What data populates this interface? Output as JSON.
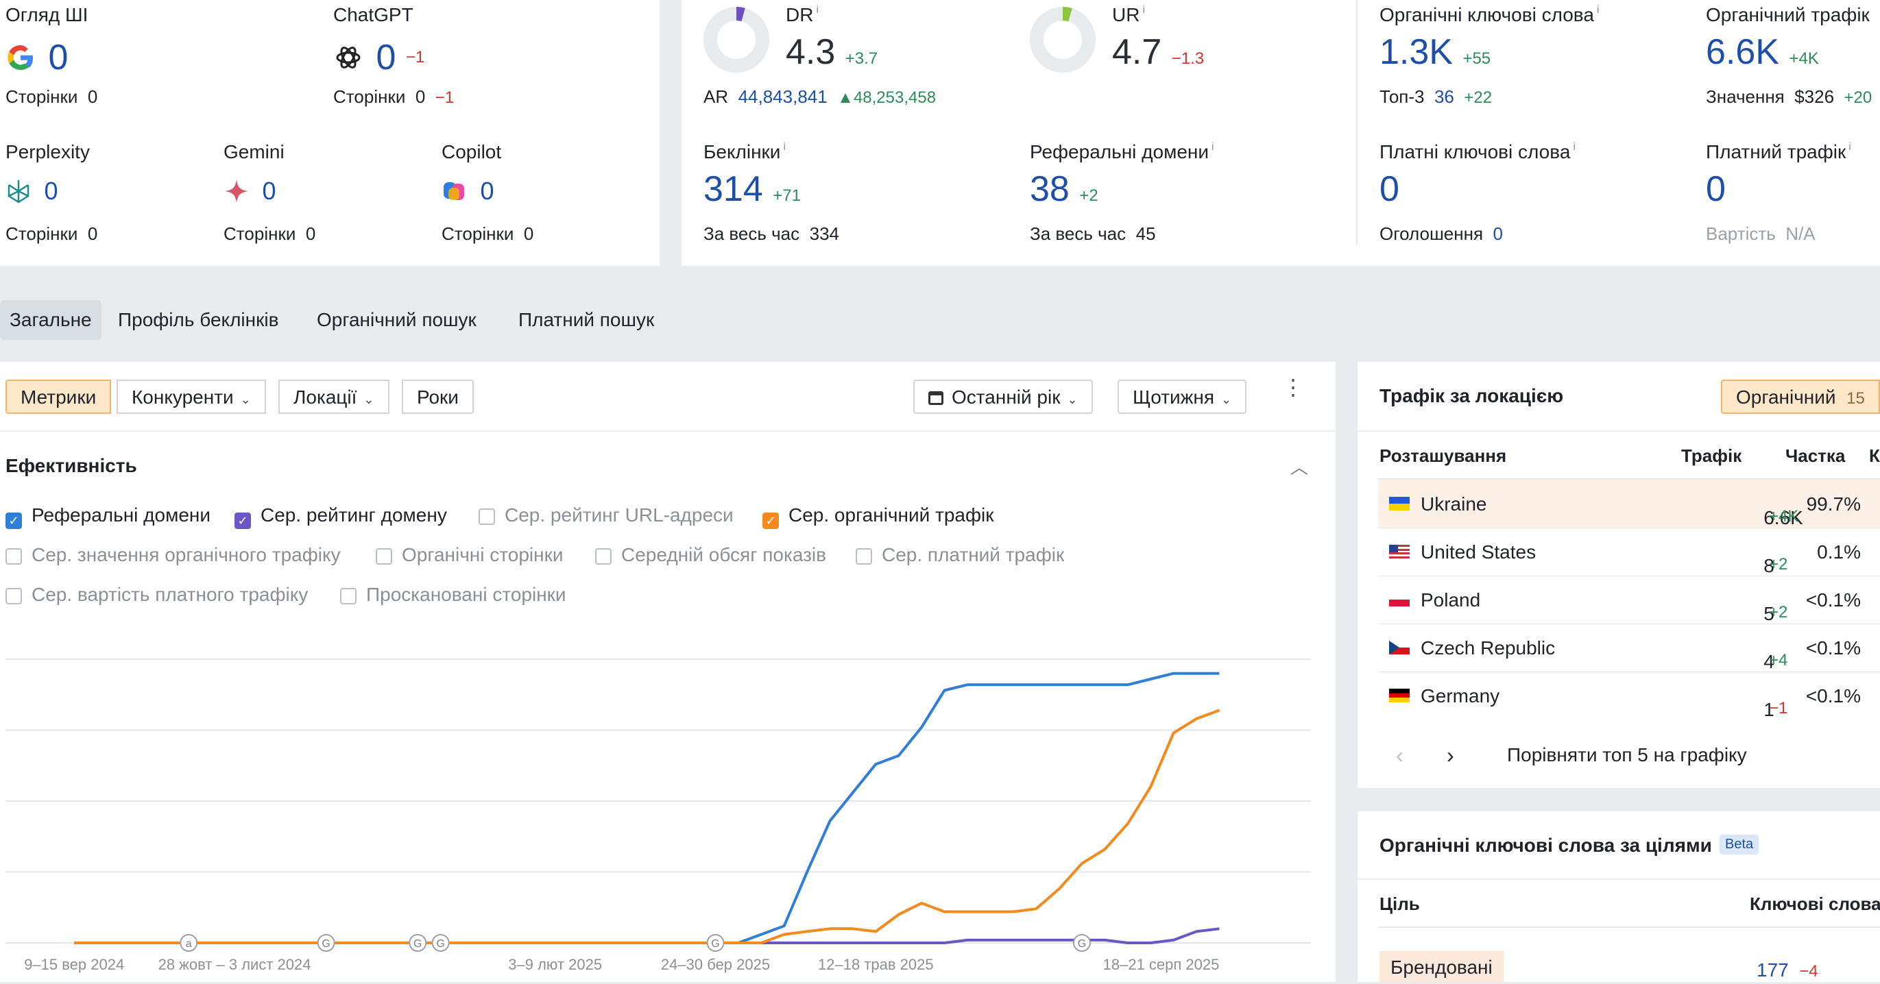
{
  "ai": {
    "overview": {
      "label": "Огляд ШІ",
      "value": "0",
      "pages_label": "Сторінки",
      "pages": "0"
    },
    "chatgpt": {
      "label": "ChatGPT",
      "value": "0",
      "delta": "−1",
      "pages_label": "Сторінки",
      "pages": "0",
      "pages_delta": "−1"
    },
    "perplexity": {
      "label": "Perplexity",
      "value": "0",
      "pages_label": "Сторінки",
      "pages": "0"
    },
    "gemini": {
      "label": "Gemini",
      "value": "0",
      "pages_label": "Сторінки",
      "pages": "0"
    },
    "copilot": {
      "label": "Copilot",
      "value": "0",
      "pages_label": "Сторінки",
      "pages": "0"
    }
  },
  "authority": {
    "dr": {
      "label": "DR",
      "value": "4.3",
      "delta": "+3.7",
      "ring_fraction": 0.043,
      "ring_color": "#6c4fc2"
    },
    "ar": {
      "label": "AR",
      "value": "44,843,841",
      "delta": "48,253,458"
    },
    "ur": {
      "label": "UR",
      "value": "4.7",
      "delta": "−1.3",
      "ring_fraction": 0.047,
      "ring_color": "#8cc63f"
    },
    "backlinks": {
      "label": "Беклінки",
      "value": "314",
      "delta": "+71",
      "alltime_label": "За весь час",
      "alltime": "334"
    },
    "refdomains": {
      "label": "Реферальні домени",
      "value": "38",
      "delta": "+2",
      "alltime_label": "За весь час",
      "alltime": "45"
    }
  },
  "search": {
    "org_kw": {
      "label": "Органічні ключові слова",
      "value": "1.3K",
      "delta": "+55",
      "top3_label": "Топ-3",
      "top3": "36",
      "top3_delta": "+22"
    },
    "org_traffic": {
      "label": "Органічний трафік",
      "value": "6.6K",
      "delta": "+4K",
      "value_label": "Значення",
      "value_amount": "$326",
      "value_delta": "+20"
    },
    "paid_kw": {
      "label": "Платні ключові слова",
      "value": "0",
      "ads_label": "Оголошення",
      "ads": "0"
    },
    "paid_traffic": {
      "label": "Платний трафік",
      "value": "0",
      "cost_label": "Вартість",
      "cost": "N/A"
    }
  },
  "tabs": [
    "Загальне",
    "Профіль беклінків",
    "Органічний пошук",
    "Платний пошук"
  ],
  "toolbar": {
    "metrics": "Метрики",
    "competitors": "Конкуренти",
    "locations": "Локації",
    "years": "Роки",
    "period": "Останній рік",
    "interval": "Щотижня"
  },
  "performance": {
    "title": "Ефективність",
    "checkboxes": [
      {
        "label": "Реферальні домени",
        "checked": true,
        "color": "#2f7fd6"
      },
      {
        "label": "Сер. рейтинг домену",
        "checked": true,
        "color": "#6c55c7"
      },
      {
        "label": "Сер. рейтинг URL-адреси",
        "checked": false
      },
      {
        "label": "Сер. органічний трафік",
        "checked": true,
        "color": "#f38a1e"
      },
      {
        "label": "Сер. значення органічного трафіку",
        "checked": false
      },
      {
        "label": "Органічні сторінки",
        "checked": false
      },
      {
        "label": "Середній обсяг показів",
        "checked": false
      },
      {
        "label": "Сер. платний трафік",
        "checked": false
      },
      {
        "label": "Сер. вартість платного трафіку",
        "checked": false
      },
      {
        "label": "Проскановані сторінки",
        "checked": false
      }
    ]
  },
  "chart_data": {
    "type": "line",
    "x_tick_labels": [
      "9–15 вер 2024",
      "28 жовт – 3 лист 2024",
      "3–9 лют 2025",
      "24–30 бер 2025",
      "12–18 трав 2025",
      "18–21 серп 2025"
    ],
    "x_tick_weeks": [
      0,
      7,
      21,
      28,
      35,
      50
    ],
    "markers": [
      {
        "week": 5,
        "letter": "a"
      },
      {
        "week": 11,
        "letter": "G"
      },
      {
        "week": 15,
        "letter": "G"
      },
      {
        "week": 16,
        "letter": "G"
      },
      {
        "week": 28,
        "letter": "G"
      },
      {
        "week": 44,
        "letter": "G"
      }
    ],
    "x_range": [
      -3,
      54
    ],
    "y_range": [
      0,
      1
    ],
    "grid": true,
    "series": [
      {
        "name": "Реферальні домени",
        "color": "#2f7fd6",
        "values": [
          0,
          0,
          0,
          0,
          0,
          0,
          0,
          0,
          0,
          0,
          0,
          0,
          0,
          0,
          0,
          0,
          0,
          0,
          0,
          0,
          0,
          0,
          0,
          0,
          0,
          0,
          0,
          0,
          0,
          0,
          0.03,
          0.06,
          0.25,
          0.43,
          0.53,
          0.63,
          0.66,
          0.76,
          0.89,
          0.91,
          0.91,
          0.91,
          0.91,
          0.91,
          0.91,
          0.91,
          0.91,
          0.93,
          0.95,
          0.95,
          0.95
        ]
      },
      {
        "name": "Сер. рейтинг домену",
        "color": "#6c55c7",
        "values": [
          0,
          0,
          0,
          0,
          0,
          0,
          0,
          0,
          0,
          0,
          0,
          0,
          0,
          0,
          0,
          0,
          0,
          0,
          0,
          0,
          0,
          0,
          0,
          0,
          0,
          0,
          0,
          0,
          0,
          0,
          0,
          0,
          0,
          0,
          0,
          0,
          0,
          0,
          0,
          0.01,
          0.01,
          0.01,
          0.01,
          0.01,
          0.01,
          0.01,
          0.0,
          0.0,
          0.01,
          0.04,
          0.05
        ]
      },
      {
        "name": "Сер. органічний трафік",
        "color": "#f38a1e",
        "values": [
          0,
          0,
          0,
          0,
          0,
          0,
          0,
          0,
          0,
          0,
          0,
          0,
          0,
          0,
          0,
          0,
          0,
          0,
          0,
          0,
          0,
          0,
          0,
          0,
          0,
          0,
          0,
          0,
          0,
          0,
          0,
          0.03,
          0.04,
          0.05,
          0.05,
          0.04,
          0.1,
          0.14,
          0.11,
          0.11,
          0.11,
          0.11,
          0.12,
          0.19,
          0.28,
          0.33,
          0.42,
          0.55,
          0.74,
          0.79,
          0.82
        ]
      }
    ]
  },
  "locations": {
    "title": "Трафік за локацією",
    "filter": "Органічний",
    "filter_count": "15",
    "col_location": "Розташування",
    "col_traffic": "Трафік",
    "col_share": "Частка",
    "col_extra": "К",
    "rows": [
      {
        "name": "Ukraine",
        "traffic": "6.6K",
        "delta": "+4K",
        "share": "99.7%"
      },
      {
        "name": "United States",
        "traffic": "8",
        "delta": "+2",
        "share": "0.1%"
      },
      {
        "name": "Poland",
        "traffic": "5",
        "delta": "+2",
        "share": "<0.1%"
      },
      {
        "name": "Czech Republic",
        "traffic": "4",
        "delta": "+4",
        "share": "<0.1%"
      },
      {
        "name": "Germany",
        "traffic": "1",
        "delta": "−1",
        "share": "<0.1%"
      }
    ],
    "compare": "Порівняти топ 5 на графіку"
  },
  "intents": {
    "title": "Органічні ключові слова за цілями",
    "badge": "Beta",
    "col_intent": "Ціль",
    "col_keywords": "Ключові слова",
    "rows": [
      {
        "name": "Брендовані",
        "keywords": "177",
        "delta": "−4"
      }
    ]
  }
}
